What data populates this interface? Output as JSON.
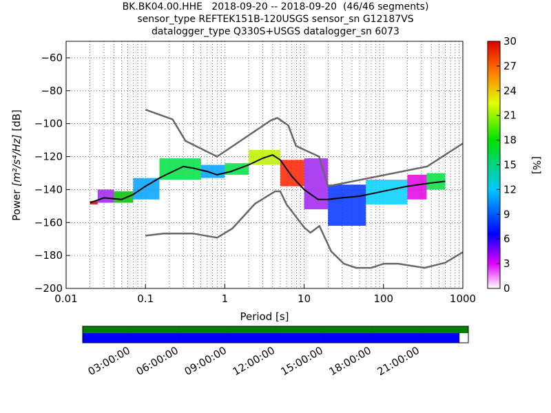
{
  "title_lines": [
    "BK.BK04.00.HHE   2018-09-20 -- 2018-09-20  (46/46 segments)",
    "sensor_type REFTEK151B-120USGS sensor_sn G12187VS",
    "datalogger_type Q330S+USGS datalogger_sn 6073"
  ],
  "chart_data": {
    "type": "heatmap",
    "xlabel": "Period [s]",
    "ylabel_prefix": "Power ",
    "ylabel_unit": "[m²/s⁴/Hz]",
    "ylabel_suffix": " [dB]",
    "x_scale": "log",
    "xlim": [
      0.01,
      1000
    ],
    "ylim": [
      -200,
      -50
    ],
    "x_ticks": [
      0.01,
      0.1,
      1,
      10,
      100,
      1000
    ],
    "x_tick_labels": [
      "0.01",
      "0.1",
      "1",
      "10",
      "100",
      "1000"
    ],
    "y_ticks": [
      -200,
      -180,
      -160,
      -140,
      -120,
      -100,
      -80,
      -60
    ],
    "y_tick_labels": [
      "−200",
      "−180",
      "−160",
      "−140",
      "−120",
      "−100",
      "−80",
      "−60"
    ],
    "grid": true,
    "colorbar": {
      "label": "[%]",
      "range": [
        0,
        30
      ],
      "ticks": [
        0,
        3,
        6,
        9,
        12,
        15,
        18,
        21,
        24,
        27,
        30
      ],
      "tick_labels": [
        "0",
        "3",
        "6",
        "9",
        "12",
        "15",
        "18",
        "21",
        "24",
        "27",
        "30"
      ]
    },
    "noise_model_high": {
      "period": [
        0.1,
        0.22,
        0.32,
        0.8,
        3.8,
        4.6,
        6.3,
        7.9,
        15.4,
        20,
        354,
        1000
      ],
      "power": [
        -91.5,
        -97.4,
        -110.5,
        -120,
        -98,
        -96.5,
        -101,
        -113.5,
        -120,
        -138,
        -126,
        -112
      ]
    },
    "noise_model_low": {
      "period": [
        0.1,
        0.17,
        0.4,
        0.8,
        1.24,
        2.4,
        4.3,
        5,
        6,
        10,
        12,
        15.6,
        21.9,
        31.6,
        45,
        70,
        101,
        154,
        328,
        600,
        1000
      ],
      "power": [
        -168,
        -166.7,
        -166.7,
        -169.2,
        -163.7,
        -148.6,
        -141.1,
        -141.1,
        -149,
        -163,
        -166.2,
        -162.1,
        -177.5,
        -185,
        -187.5,
        -187.5,
        -185,
        -185,
        -187.5,
        -184.4,
        -178
      ]
    },
    "mean_psd": {
      "period": [
        0.02,
        0.03,
        0.05,
        0.07,
        0.1,
        0.15,
        0.2,
        0.3,
        0.4,
        0.6,
        0.8,
        1.2,
        2,
        3,
        4,
        5,
        7,
        10,
        15,
        20,
        30,
        50,
        100,
        200,
        400,
        600
      ],
      "power": [
        -148,
        -145,
        -146,
        -143,
        -138,
        -133,
        -130,
        -126,
        -127,
        -129,
        -131,
        -129,
        -125,
        -121,
        -119,
        -122,
        -132,
        -140,
        -146,
        -146,
        -145,
        -144,
        -141,
        -138,
        -136,
        -135
      ]
    },
    "spread_bands": [
      {
        "p_from": 0.02,
        "p_to": 0.025,
        "high": -147,
        "low": -149,
        "color": "#d00000"
      },
      {
        "p_from": 0.025,
        "p_to": 0.04,
        "high": -140,
        "low": -148,
        "color": "#a020f0"
      },
      {
        "p_from": 0.04,
        "p_to": 0.07,
        "high": -141,
        "low": -148,
        "color": "#00c000"
      },
      {
        "p_from": 0.07,
        "p_to": 0.15,
        "high": -133,
        "low": -146,
        "color": "#00a0ff"
      },
      {
        "p_from": 0.15,
        "p_to": 0.5,
        "high": -121,
        "low": -134,
        "color": "#00e040"
      },
      {
        "p_from": 0.5,
        "p_to": 1.0,
        "high": -125,
        "low": -133,
        "color": "#00a0ff"
      },
      {
        "p_from": 1.0,
        "p_to": 2.0,
        "high": -124,
        "low": -131,
        "color": "#00e040"
      },
      {
        "p_from": 2.0,
        "p_to": 5.0,
        "high": -116,
        "low": -125,
        "color": "#c0f000"
      },
      {
        "p_from": 5.0,
        "p_to": 10.0,
        "high": -122,
        "low": -138,
        "color": "#ff2000"
      },
      {
        "p_from": 10.0,
        "p_to": 20.0,
        "high": -121,
        "low": -152,
        "color": "#a020f0"
      },
      {
        "p_from": 20.0,
        "p_to": 60.0,
        "high": -137,
        "low": -162,
        "color": "#0030ff"
      },
      {
        "p_from": 60.0,
        "p_to": 200.0,
        "high": -134,
        "low": -149,
        "color": "#00d0ff"
      },
      {
        "p_from": 200.0,
        "p_to": 350.0,
        "high": -131,
        "low": -146,
        "color": "#e000e0"
      },
      {
        "p_from": 350.0,
        "p_to": 600.0,
        "high": -130,
        "low": -140,
        "color": "#00e040"
      }
    ]
  },
  "timeline": {
    "labels": [
      "03:00:00",
      "06:00:00",
      "09:00:00",
      "12:00:00",
      "15:00:00",
      "18:00:00",
      "21:00:00"
    ],
    "data_coverage": 0.977,
    "colors": {
      "coverage": "#007f00",
      "processed": "#0000ff"
    }
  }
}
